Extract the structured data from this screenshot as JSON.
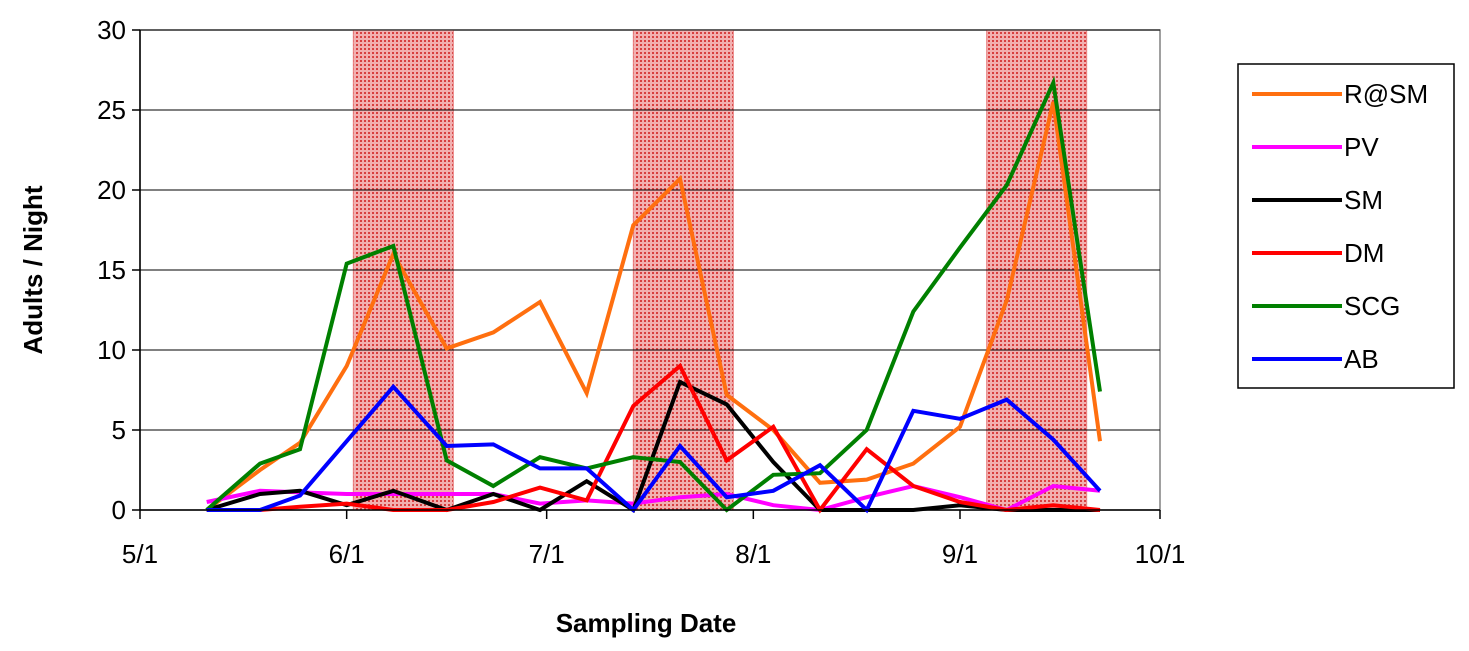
{
  "chart_data": {
    "type": "line",
    "title": "",
    "xlabel": "Sampling Date",
    "ylabel": "Adults / Night",
    "x_ticks": [
      "5/1",
      "6/1",
      "7/1",
      "8/1",
      "9/1",
      "10/1"
    ],
    "x_tick_dates": [
      "2000-05-01",
      "2000-06-01",
      "2000-07-01",
      "2000-08-01",
      "2000-09-01",
      "2000-10-01"
    ],
    "y_ticks": [
      0,
      5,
      10,
      15,
      20,
      25,
      30
    ],
    "ylim": [
      0,
      30
    ],
    "xlim": [
      "2000-05-01",
      "2000-10-01"
    ],
    "grid": "horizontal",
    "legend": "right",
    "highlight_ranges": [
      {
        "start": "2000-06-02",
        "end": "2000-06-17",
        "color": "#e88080"
      },
      {
        "start": "2000-07-14",
        "end": "2000-07-29",
        "color": "#e88080"
      },
      {
        "start": "2000-09-05",
        "end": "2000-09-20",
        "color": "#e88080"
      }
    ],
    "series": [
      {
        "name": "R@SM",
        "color": "#ff6f0f",
        "x": [
          "2000-05-11",
          "2000-05-19",
          "2000-05-25",
          "2000-06-01",
          "2000-06-08",
          "2000-06-16",
          "2000-06-23",
          "2000-06-30",
          "2000-07-07",
          "2000-07-14",
          "2000-07-21",
          "2000-07-28",
          "2000-08-04",
          "2000-08-11",
          "2000-08-18",
          "2000-08-25",
          "2000-09-01",
          "2000-09-08",
          "2000-09-15",
          "2000-09-22"
        ],
        "y": [
          0,
          2.5,
          4.2,
          9,
          16,
          10.1,
          11.1,
          13,
          7.3,
          17.8,
          20.7,
          7.2,
          5,
          1.7,
          1.9,
          2.9,
          5.2,
          13.1,
          25.5,
          4.3
        ]
      },
      {
        "name": "PV",
        "color": "#ff00ff",
        "x": [
          "2000-05-11",
          "2000-05-19",
          "2000-05-25",
          "2000-06-01",
          "2000-06-08",
          "2000-06-16",
          "2000-06-23",
          "2000-06-30",
          "2000-07-07",
          "2000-07-14",
          "2000-07-21",
          "2000-07-28",
          "2000-08-04",
          "2000-08-11",
          "2000-08-18",
          "2000-08-25",
          "2000-09-01",
          "2000-09-08",
          "2000-09-15",
          "2000-09-22"
        ],
        "y": [
          0.5,
          1.2,
          1.1,
          1,
          1,
          1,
          1,
          0.4,
          0.6,
          0.4,
          0.8,
          1,
          0.3,
          0,
          0.8,
          1.5,
          0.8,
          0,
          1.5,
          1.2
        ]
      },
      {
        "name": "SM",
        "color": "#000000",
        "x": [
          "2000-05-11",
          "2000-05-19",
          "2000-05-25",
          "2000-06-01",
          "2000-06-08",
          "2000-06-16",
          "2000-06-23",
          "2000-06-30",
          "2000-07-07",
          "2000-07-14",
          "2000-07-21",
          "2000-07-28",
          "2000-08-04",
          "2000-08-11",
          "2000-08-18",
          "2000-08-25",
          "2000-09-01",
          "2000-09-08",
          "2000-09-15",
          "2000-09-22"
        ],
        "y": [
          0,
          1,
          1.2,
          0.3,
          1.2,
          0,
          1,
          0,
          1.8,
          0,
          8,
          6.6,
          3,
          0,
          0,
          0,
          0.3,
          0,
          0,
          0
        ]
      },
      {
        "name": "DM",
        "color": "#ff0000",
        "x": [
          "2000-05-11",
          "2000-05-19",
          "2000-05-25",
          "2000-06-01",
          "2000-06-08",
          "2000-06-16",
          "2000-06-23",
          "2000-06-30",
          "2000-07-07",
          "2000-07-14",
          "2000-07-21",
          "2000-07-28",
          "2000-08-04",
          "2000-08-11",
          "2000-08-18",
          "2000-08-25",
          "2000-09-01",
          "2000-09-08",
          "2000-09-15",
          "2000-09-22"
        ],
        "y": [
          0,
          0,
          0.2,
          0.4,
          0,
          0,
          0.5,
          1.4,
          0.6,
          6.5,
          9,
          3.1,
          5.2,
          0,
          3.8,
          1.5,
          0.5,
          0,
          0.3,
          0
        ]
      },
      {
        "name": "SCG",
        "color": "#008000",
        "x": [
          "2000-05-11",
          "2000-05-19",
          "2000-05-25",
          "2000-06-01",
          "2000-06-08",
          "2000-06-16",
          "2000-06-23",
          "2000-06-30",
          "2000-07-07",
          "2000-07-14",
          "2000-07-21",
          "2000-07-28",
          "2000-08-04",
          "2000-08-11",
          "2000-08-18",
          "2000-08-25",
          "2000-09-01",
          "2000-09-08",
          "2000-09-15",
          "2000-09-22"
        ],
        "y": [
          0,
          2.9,
          3.8,
          15.4,
          16.5,
          3.1,
          1.5,
          3.3,
          2.6,
          3.3,
          3,
          0,
          2.2,
          2.3,
          5,
          12.4,
          16.4,
          20.3,
          26.7,
          7.4
        ]
      },
      {
        "name": "AB",
        "color": "#0000ff",
        "x": [
          "2000-05-11",
          "2000-05-19",
          "2000-05-25",
          "2000-06-01",
          "2000-06-08",
          "2000-06-16",
          "2000-06-23",
          "2000-06-30",
          "2000-07-07",
          "2000-07-14",
          "2000-07-21",
          "2000-07-28",
          "2000-08-04",
          "2000-08-11",
          "2000-08-18",
          "2000-08-25",
          "2000-09-01",
          "2000-09-08",
          "2000-09-15",
          "2000-09-22"
        ],
        "y": [
          0,
          0,
          0.9,
          4.3,
          7.7,
          4,
          4.1,
          2.6,
          2.6,
          0,
          4,
          0.8,
          1.2,
          2.8,
          0,
          6.2,
          5.7,
          6.9,
          4.4,
          1.2
        ]
      }
    ]
  }
}
